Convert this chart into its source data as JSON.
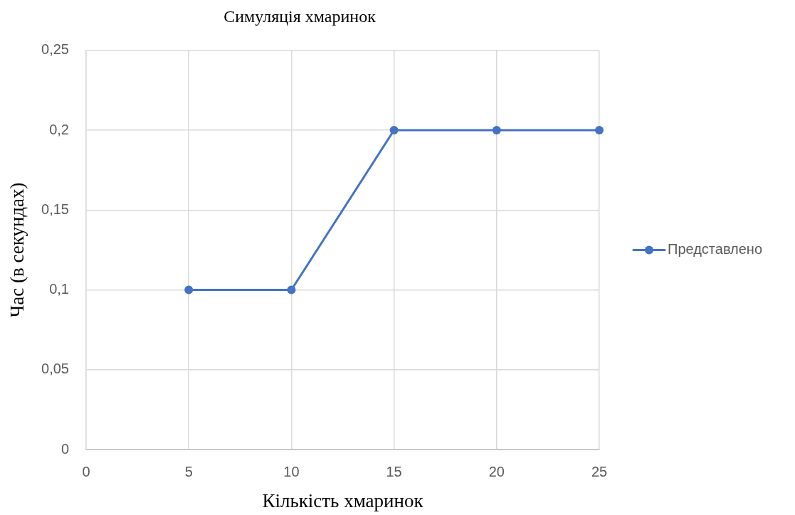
{
  "chart_data": {
    "type": "line",
    "title": "Симуляція хмаринок",
    "xlabel": "Кількість хмаринок",
    "ylabel": "Час (в секундах)",
    "x": [
      5,
      10,
      15,
      20,
      25
    ],
    "series": [
      {
        "name": "Представлено",
        "color": "#4472c4",
        "values": [
          0.1,
          0.1,
          0.2,
          0.2,
          0.2
        ]
      }
    ],
    "xlim": [
      0,
      25
    ],
    "xticks": [
      0,
      5,
      10,
      15,
      20,
      25
    ],
    "ylim": [
      0,
      0.25
    ],
    "yticks": [
      0,
      {
        "value": 0.05,
        "label": "0,05"
      },
      {
        "value": 0.1,
        "label": "0,1"
      },
      {
        "value": 0.15,
        "label": "0,15"
      },
      {
        "value": 0.2,
        "label": "0,2"
      },
      {
        "value": 0.25,
        "label": "0,25"
      }
    ],
    "grid": true,
    "legend": "right",
    "marker": "circle",
    "line_style": "solid"
  }
}
